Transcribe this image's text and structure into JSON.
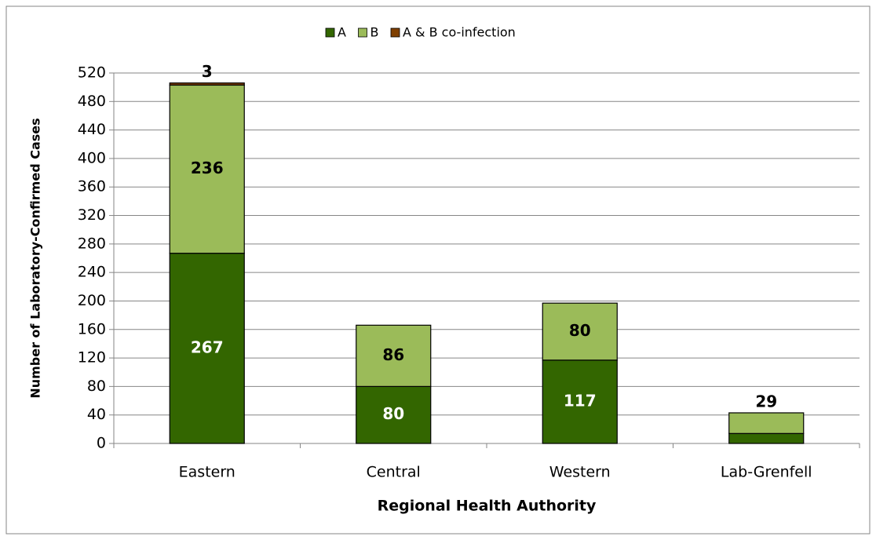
{
  "chart_data": {
    "type": "stacked_bar",
    "x_label": "Regional Health Authority",
    "y_label": "Number of Laboratory-Confirmed Cases",
    "categories": [
      "Eastern",
      "Central",
      "Western",
      "Lab-Grenfell"
    ],
    "series": [
      {
        "name": "A",
        "color": "#336600",
        "label_color": "#ffffff",
        "values": [
          267,
          80,
          117,
          14
        ]
      },
      {
        "name": "B",
        "color": "#9bbb59",
        "label_color": "#000000",
        "values": [
          236,
          86,
          80,
          29
        ]
      },
      {
        "name": "A & B co-infection",
        "color": "#7f3f00",
        "label_color": "#000000",
        "values": [
          3,
          0,
          0,
          0
        ],
        "value_labels": [
          "3",
          null,
          null,
          null
        ]
      }
    ],
    "ylim": [
      0,
      520
    ],
    "yticks": [
      0,
      40,
      80,
      120,
      160,
      200,
      240,
      280,
      320,
      360,
      400,
      440,
      480,
      520
    ],
    "grid": true,
    "legend": "top"
  }
}
